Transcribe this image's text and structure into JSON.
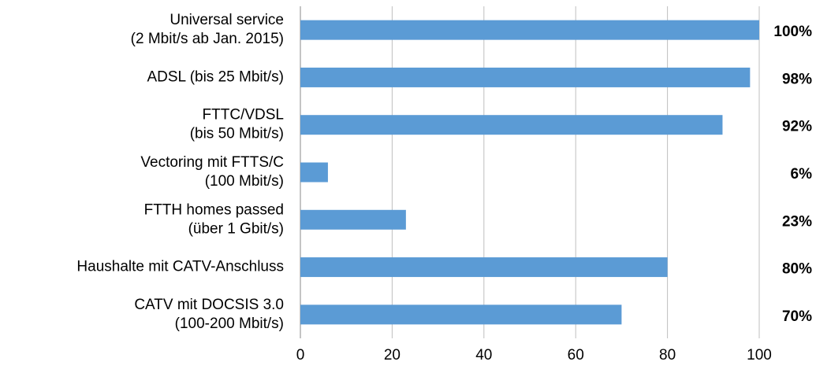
{
  "chart_data": {
    "type": "bar",
    "orientation": "horizontal",
    "categories": [
      "Universal service\n(2 Mbit/s ab Jan. 2015)",
      "ADSL (bis 25 Mbit/s)",
      "FTTC/VDSL\n(bis 50 Mbit/s)",
      "Vectoring mit FTTS/C\n(100 Mbit/s)",
      "FTTH homes passed\n(über 1 Gbit/s)",
      "Haushalte mit CATV-Anschluss",
      "CATV mit DOCSIS 3.0\n(100-200 Mbit/s)"
    ],
    "values": [
      100,
      98,
      92,
      6,
      23,
      80,
      70
    ],
    "value_labels": [
      "100%",
      "98%",
      "92%",
      "6%",
      "23%",
      "80%",
      "70%"
    ],
    "color": "#5b9bd5",
    "xlim": [
      0,
      100
    ],
    "xticks": [
      0,
      20,
      40,
      60,
      80,
      100
    ],
    "grid": true
  }
}
